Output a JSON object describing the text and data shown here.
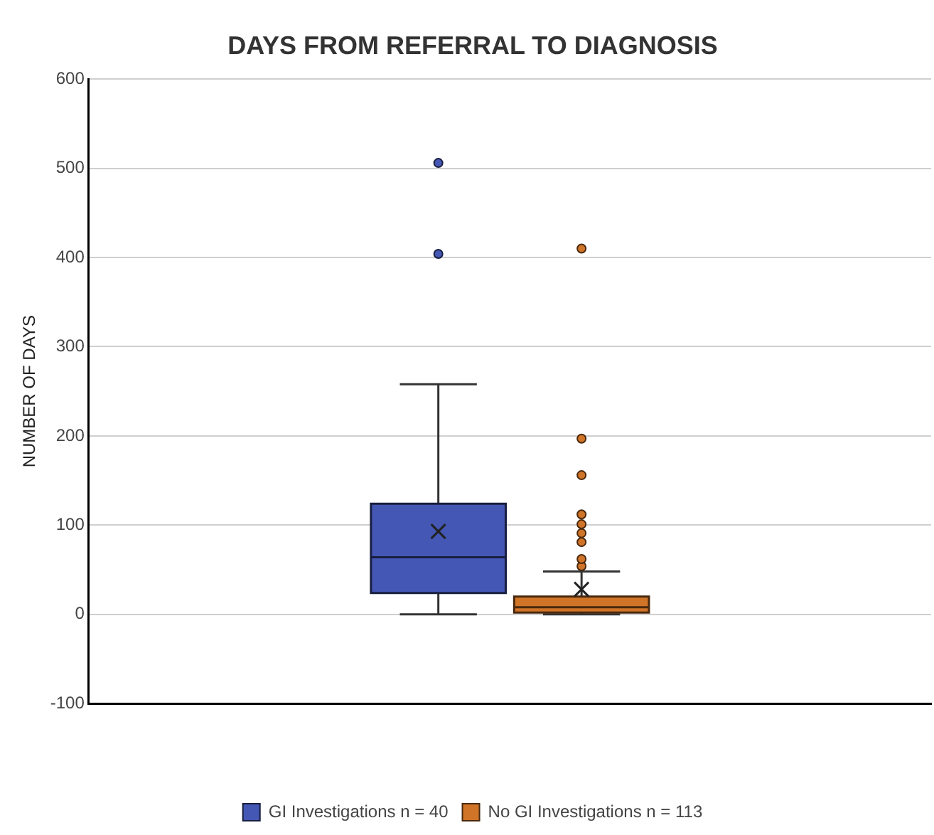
{
  "chart_data": {
    "type": "box",
    "title": "DAYS FROM REFERRAL TO DIAGNOSIS",
    "ylabel": "NUMBER OF DAYS",
    "categories": [
      null
    ],
    "series": [
      {
        "name": "GI Investigations n = 40",
        "color": "#4457b4",
        "boxes": [
          {
            "low": 0,
            "q1": 24,
            "median": 64,
            "q3": 124,
            "high": 258,
            "mean": 93,
            "outliers": [
              404,
              506
            ]
          }
        ]
      },
      {
        "name": "No GI Investigations n = 113",
        "color": "#d07428",
        "boxes": [
          {
            "low": 0,
            "q1": 2,
            "median": 8,
            "q3": 20,
            "high": 48,
            "mean": 28,
            "outliers": [
              54,
              62,
              81,
              91,
              101,
              112,
              156,
              197,
              410
            ]
          }
        ]
      }
    ],
    "ylim": [
      -100,
      600
    ],
    "yticks": [
      -100,
      0,
      100,
      200,
      300,
      400,
      500,
      600
    ],
    "grid": "y",
    "legend": "bottom"
  }
}
